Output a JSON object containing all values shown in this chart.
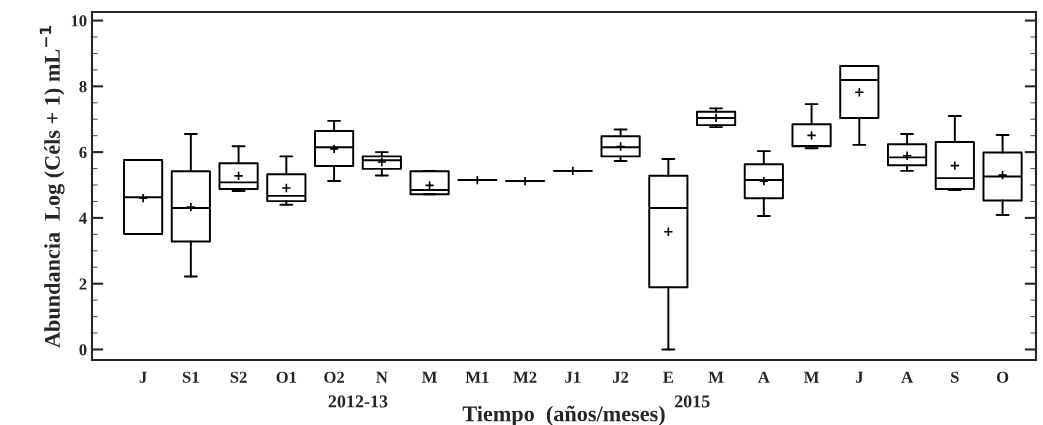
{
  "chart_data": {
    "type": "box",
    "xlabel": "Tiempo  (años/meses)",
    "ylabel": "Abundancia  Log (Céls + 1) mL$^{−1}$",
    "categories": [
      "J",
      "S1",
      "S2",
      "O1",
      "O2",
      "N",
      "M",
      "M1",
      "M2",
      "J1",
      "J2",
      "E",
      "M",
      "A",
      "M",
      "J",
      "A",
      "S",
      "O"
    ],
    "boxes": [
      {
        "low": 3.51,
        "q1": 3.51,
        "median": 4.63,
        "q3": 5.76,
        "high": 5.76,
        "mean": 4.6
      },
      {
        "low": 2.22,
        "q1": 3.28,
        "median": 4.3,
        "q3": 5.42,
        "high": 6.55,
        "mean": 4.33
      },
      {
        "low": 4.82,
        "q1": 4.88,
        "median": 5.08,
        "q3": 5.66,
        "high": 6.18,
        "mean": 5.28
      },
      {
        "low": 4.4,
        "q1": 4.51,
        "median": 4.67,
        "q3": 5.33,
        "high": 5.87,
        "mean": 4.91
      },
      {
        "low": 5.12,
        "q1": 5.58,
        "median": 6.15,
        "q3": 6.64,
        "high": 6.95,
        "mean": 6.1
      },
      {
        "low": 5.29,
        "q1": 5.49,
        "median": 5.75,
        "q3": 5.87,
        "high": 6.0,
        "mean": 5.7
      },
      {
        "low": 4.72,
        "q1": 4.72,
        "median": 4.85,
        "q3": 5.42,
        "high": 5.43,
        "mean": 4.99
      },
      {
        "low": 5.15,
        "q1": 5.15,
        "median": 5.15,
        "q3": 5.15,
        "high": 5.15,
        "mean": 5.15
      },
      {
        "low": 5.12,
        "q1": 5.12,
        "median": 5.12,
        "q3": 5.12,
        "high": 5.12,
        "mean": 5.12
      },
      {
        "low": 5.43,
        "q1": 5.43,
        "median": 5.43,
        "q3": 5.43,
        "high": 5.43,
        "mean": 5.43
      },
      {
        "low": 5.73,
        "q1": 5.87,
        "median": 6.15,
        "q3": 6.48,
        "high": 6.69,
        "mean": 6.17
      },
      {
        "low": 0,
        "q1": 1.89,
        "median": 4.3,
        "q3": 5.28,
        "high": 5.79,
        "mean": 3.58
      },
      {
        "low": 6.76,
        "q1": 6.82,
        "median": 7.04,
        "q3": 7.23,
        "high": 7.33,
        "mean": 7.04
      },
      {
        "low": 4.06,
        "q1": 4.6,
        "median": 5.15,
        "q3": 5.63,
        "high": 6.03,
        "mean": 5.12
      },
      {
        "low": 6.12,
        "q1": 6.18,
        "median": 6.19,
        "q3": 6.85,
        "high": 7.46,
        "mean": 6.51
      },
      {
        "low": 6.22,
        "q1": 7.04,
        "median": 8.19,
        "q3": 8.62,
        "high": 8.62,
        "mean": 7.82
      },
      {
        "low": 5.43,
        "q1": 5.6,
        "median": 5.84,
        "q3": 6.24,
        "high": 6.55,
        "mean": 5.89
      },
      {
        "low": 4.85,
        "q1": 4.88,
        "median": 5.21,
        "q3": 6.31,
        "high": 7.1,
        "mean": 5.59
      },
      {
        "low": 4.09,
        "q1": 4.53,
        "median": 5.26,
        "q3": 5.99,
        "high": 6.52,
        "mean": 5.3
      }
    ],
    "ylim": [
      -0.32,
      10.26
    ],
    "yticks": [
      0,
      2,
      4,
      6,
      8,
      10
    ],
    "grid": false,
    "annotations": [
      "2012-13",
      "2015"
    ]
  }
}
